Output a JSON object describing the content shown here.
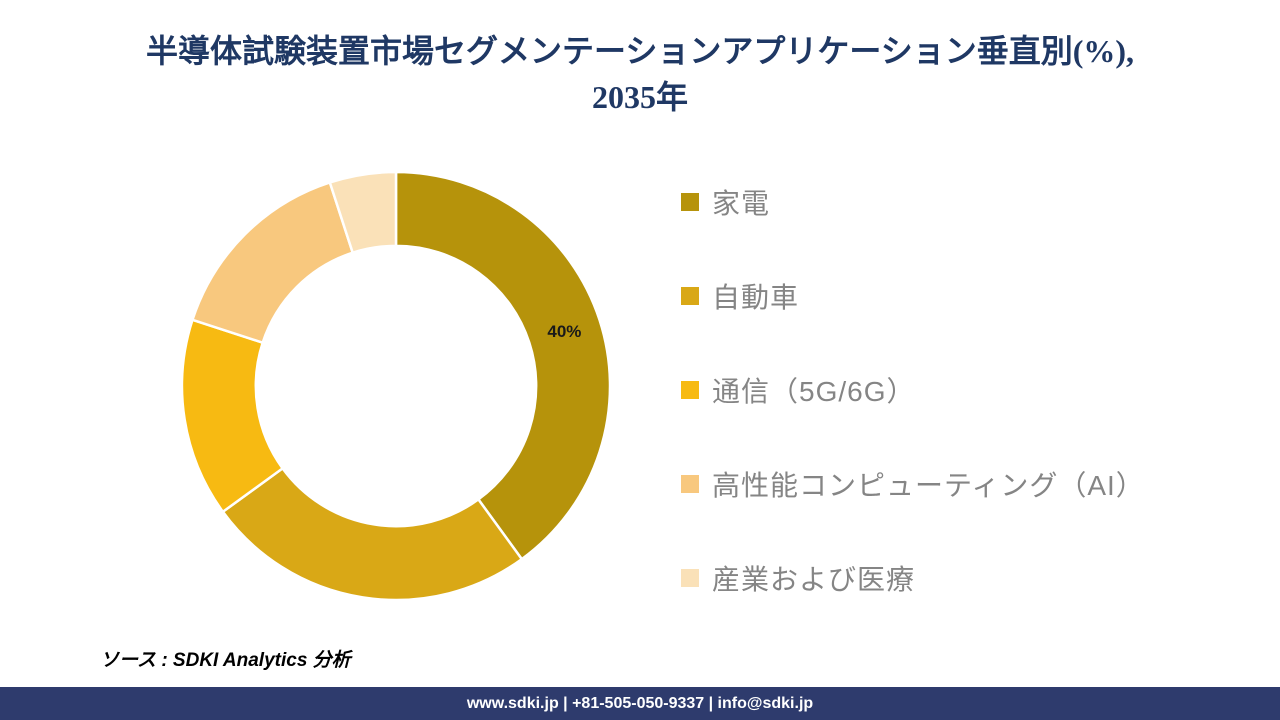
{
  "header": {
    "title_line1": "半導体試験装置市場セグメンテーションアプリケーション垂直別(%),",
    "title_line2": "2035年",
    "title_color": "#1F3864"
  },
  "chart_data": {
    "type": "donut",
    "title": "半導体試験装置市場セグメンテーションアプリケーション垂直別(%), 2035年",
    "categories": [
      "家電",
      "自動車",
      "通信（5G/6G）",
      "高性能コンピューティング（AI）",
      "産業および医療"
    ],
    "values": [
      40,
      25,
      15,
      15,
      5
    ],
    "unit": "%",
    "colors": [
      "#B6930B",
      "#D9A816",
      "#F7BA12",
      "#F8C87E",
      "#FAE1B8"
    ],
    "data_labels": [
      "40%",
      "",
      "",
      "",
      ""
    ],
    "data_label_color": "#1A1A1A",
    "legend_position": "right",
    "legend_text_color": "#858585",
    "start_angle_deg": 0,
    "direction": "clockwise",
    "inner_radius_ratio": 0.655,
    "segment_stroke": "#FFFFFF"
  },
  "source": {
    "text": "ソース : SDKI Analytics 分析"
  },
  "footer": {
    "text": "www.sdki.jp | +81-505-050-9337 | info@sdki.jp",
    "bg_color": "#2E3B6D",
    "text_color": "#FFFFFF"
  }
}
